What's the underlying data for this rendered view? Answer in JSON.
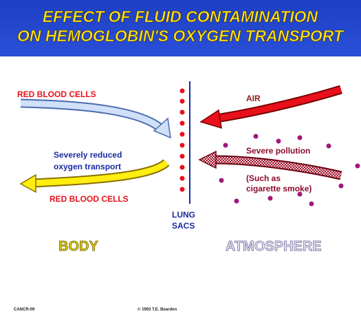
{
  "header": {
    "title": [
      "EFFECT OF FLUID CONTAMINATION",
      "ON HEMOGLOBIN'S OXYGEN TRANSPORT"
    ]
  },
  "labels": {
    "red_blood_cells_in": "RED BLOOD CELLS",
    "air": "AIR",
    "reduced": [
      "Severely reduced",
      "oxygen transport"
    ],
    "pollution": "Severe pollution",
    "such_as": [
      "(Such as",
      "cigarette smoke)"
    ],
    "red_blood_cells_out": "RED BLOOD CELLS",
    "lung_sacs": [
      "LUNG",
      "SACS"
    ],
    "body": "BODY",
    "atmosphere": "ATMOSPHERE"
  },
  "footer": {
    "code": "CANCR-09",
    "copyright": "© 1993 T.E. Bearden"
  }
}
